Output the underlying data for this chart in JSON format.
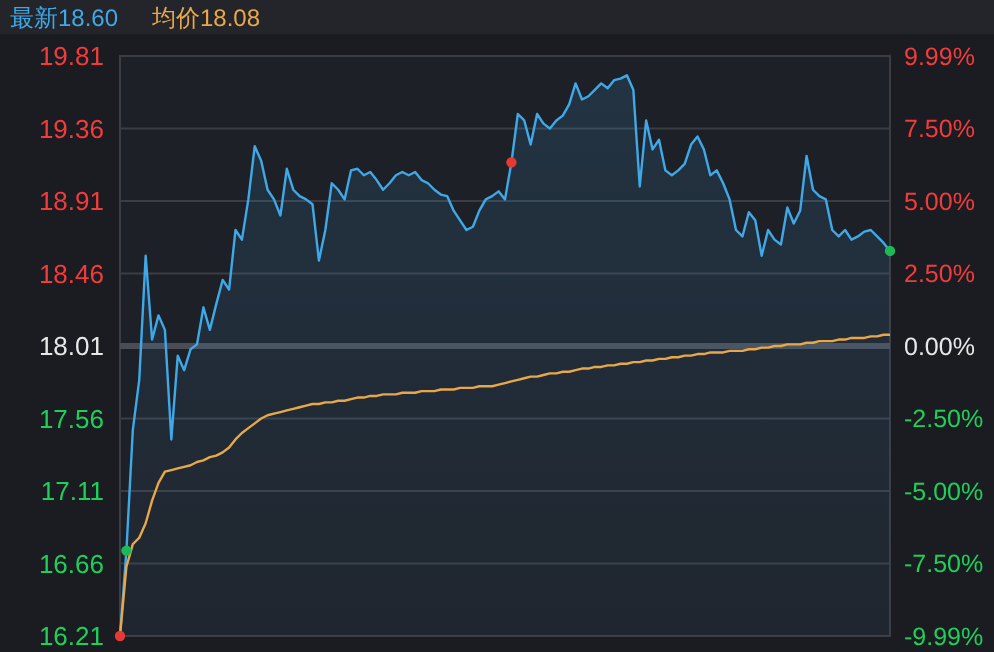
{
  "chart_data": {
    "type": "area",
    "annotations": [
      "最新18.60",
      "均价18.08"
    ],
    "categories": [
      null,
      null,
      null,
      null,
      null,
      null,
      null,
      null,
      null,
      null,
      null,
      null,
      null,
      null,
      null,
      null,
      null,
      null,
      null,
      null,
      null,
      null,
      null,
      null,
      null,
      null,
      null,
      null,
      null,
      null,
      null,
      null,
      null,
      null,
      null,
      null,
      null,
      null,
      null,
      null,
      null,
      null,
      null,
      null,
      null,
      null,
      null,
      null,
      null,
      null,
      null,
      null,
      null,
      null,
      null,
      null,
      null,
      null,
      null,
      null,
      null,
      null,
      null,
      null,
      null,
      null,
      null,
      null,
      null,
      null,
      null,
      null,
      null,
      null,
      null,
      null,
      null,
      null,
      null,
      null,
      null,
      null,
      null,
      null,
      null,
      null,
      null,
      null,
      null,
      null,
      null,
      null,
      null,
      null,
      null,
      null,
      null,
      null,
      null,
      null,
      null,
      null,
      null,
      null,
      null,
      null,
      null,
      null,
      null,
      null,
      null,
      null,
      null,
      null,
      null,
      null,
      null,
      null,
      null,
      null,
      null
    ],
    "ylim": [
      16.21,
      19.81
    ],
    "yticks": [
      16.21,
      16.66,
      17.11,
      17.56,
      18.01,
      18.46,
      18.91,
      19.36,
      19.81
    ],
    "y2lim": [
      -9.99,
      9.99
    ],
    "y2ticks": [
      {
        "value": -9.99,
        "label": "-9.99%"
      },
      {
        "value": -7.5,
        "label": "-7.50%"
      },
      {
        "value": -5,
        "label": "-5.00%"
      },
      {
        "value": -2.5,
        "label": "-2.50%"
      },
      {
        "value": 0,
        "label": "0.00%"
      },
      {
        "value": 2.5,
        "label": "2.50%"
      },
      {
        "value": 5,
        "label": "5.00%"
      },
      {
        "value": 7.5,
        "label": "7.50%"
      },
      {
        "value": 9.99,
        "label": "9.99%"
      }
    ],
    "grid": "y",
    "ref_lines": [
      {
        "axis": "y",
        "value": 18.01,
        "color": "#4a4d55"
      }
    ],
    "series": [
      {
        "color": "#3fa9e8",
        "values": [
          16.21,
          16.74,
          17.49,
          17.8,
          18.57,
          18.05,
          18.2,
          18.11,
          17.43,
          17.95,
          17.86,
          17.99,
          18.02,
          18.25,
          18.11,
          18.27,
          18.42,
          18.36,
          18.73,
          18.67,
          18.92,
          19.25,
          19.16,
          18.98,
          18.92,
          18.82,
          19.11,
          18.98,
          18.94,
          18.92,
          18.89,
          18.54,
          18.73,
          19.02,
          18.98,
          18.92,
          19.1,
          19.11,
          19.07,
          19.09,
          19.04,
          18.98,
          19.02,
          19.07,
          19.09,
          19.07,
          19.09,
          19.04,
          19.02,
          18.98,
          18.95,
          18.94,
          18.85,
          18.79,
          18.73,
          18.75,
          18.85,
          18.92,
          18.94,
          18.97,
          18.92,
          19.15,
          19.45,
          19.41,
          19.26,
          19.45,
          19.39,
          19.36,
          19.41,
          19.44,
          19.51,
          19.64,
          19.54,
          19.56,
          19.6,
          19.64,
          19.61,
          19.66,
          19.67,
          19.69,
          19.6,
          19.0,
          19.41,
          19.23,
          19.29,
          19.1,
          19.07,
          19.1,
          19.14,
          19.26,
          19.31,
          19.23,
          19.07,
          19.1,
          19.02,
          18.92,
          18.73,
          18.69,
          18.84,
          18.79,
          18.57,
          18.73,
          18.67,
          18.64,
          18.87,
          18.77,
          18.85,
          19.19,
          18.98,
          18.94,
          18.92,
          18.73,
          18.69,
          18.73,
          18.67,
          18.69,
          18.72,
          18.73,
          18.69,
          18.65,
          18.6
        ]
      },
      {
        "type": "line",
        "color": "#e8a84a",
        "values": [
          16.21,
          16.64,
          16.78,
          16.82,
          16.91,
          17.05,
          17.16,
          17.23,
          17.24,
          17.25,
          17.26,
          17.27,
          17.29,
          17.3,
          17.32,
          17.33,
          17.35,
          17.38,
          17.43,
          17.47,
          17.5,
          17.53,
          17.56,
          17.58,
          17.59,
          17.6,
          17.61,
          17.62,
          17.63,
          17.64,
          17.65,
          17.65,
          17.66,
          17.66,
          17.67,
          17.67,
          17.68,
          17.69,
          17.69,
          17.7,
          17.7,
          17.71,
          17.71,
          17.71,
          17.72,
          17.72,
          17.72,
          17.73,
          17.73,
          17.73,
          17.74,
          17.74,
          17.74,
          17.75,
          17.75,
          17.75,
          17.76,
          17.76,
          17.76,
          17.77,
          17.78,
          17.79,
          17.8,
          17.81,
          17.82,
          17.82,
          17.83,
          17.84,
          17.84,
          17.85,
          17.85,
          17.86,
          17.87,
          17.87,
          17.88,
          17.88,
          17.89,
          17.89,
          17.9,
          17.9,
          17.91,
          17.91,
          17.92,
          17.92,
          17.93,
          17.93,
          17.94,
          17.94,
          17.95,
          17.95,
          17.96,
          17.96,
          17.97,
          17.97,
          17.97,
          17.98,
          17.98,
          17.98,
          17.99,
          17.99,
          18.0,
          18.0,
          18.01,
          18.01,
          18.02,
          18.02,
          18.02,
          18.03,
          18.03,
          18.04,
          18.04,
          18.04,
          18.05,
          18.05,
          18.06,
          18.06,
          18.06,
          18.07,
          18.07,
          18.08,
          18.08
        ]
      },
      {
        "type": "scatter",
        "marker": "circle",
        "colors": [
          "#e53935",
          "#1db954",
          null,
          null,
          null,
          null,
          null,
          null,
          null,
          null,
          null,
          null,
          null,
          null,
          null,
          null,
          null,
          null,
          null,
          null,
          null,
          null,
          null,
          null,
          null,
          null,
          null,
          null,
          null,
          null,
          null,
          null,
          null,
          null,
          null,
          null,
          null,
          null,
          null,
          null,
          null,
          null,
          null,
          null,
          null,
          null,
          null,
          null,
          null,
          null,
          null,
          null,
          null,
          null,
          null,
          null,
          null,
          null,
          null,
          null,
          null,
          "#e53935",
          null,
          null,
          null,
          null,
          null,
          null,
          null,
          null,
          null,
          null,
          null,
          null,
          null,
          null,
          null,
          null,
          null,
          null,
          null,
          null,
          null,
          null,
          null,
          null,
          null,
          null,
          null,
          null,
          null,
          null,
          null,
          null,
          null,
          null,
          null,
          null,
          null,
          null,
          null,
          null,
          null,
          null,
          null,
          null,
          null,
          null,
          null,
          null,
          null,
          null,
          null,
          null,
          null,
          null,
          null,
          null,
          null,
          null,
          "#1db954"
        ],
        "values": [
          16.21,
          16.74,
          null,
          null,
          null,
          null,
          null,
          null,
          null,
          null,
          null,
          null,
          null,
          null,
          null,
          null,
          null,
          null,
          null,
          null,
          null,
          null,
          null,
          null,
          null,
          null,
          null,
          null,
          null,
          null,
          null,
          null,
          null,
          null,
          null,
          null,
          null,
          null,
          null,
          null,
          null,
          null,
          null,
          null,
          null,
          null,
          null,
          null,
          null,
          null,
          null,
          null,
          null,
          null,
          null,
          null,
          null,
          null,
          null,
          null,
          null,
          19.15,
          null,
          null,
          null,
          null,
          null,
          null,
          null,
          null,
          null,
          null,
          null,
          null,
          null,
          null,
          null,
          null,
          null,
          null,
          null,
          null,
          null,
          null,
          null,
          null,
          null,
          null,
          null,
          null,
          null,
          null,
          null,
          null,
          null,
          null,
          null,
          null,
          null,
          null,
          null,
          null,
          null,
          null,
          null,
          null,
          null,
          null,
          null,
          null,
          null,
          null,
          null,
          null,
          null,
          null,
          null,
          null,
          null,
          null,
          18.6
        ]
      }
    ]
  }
}
